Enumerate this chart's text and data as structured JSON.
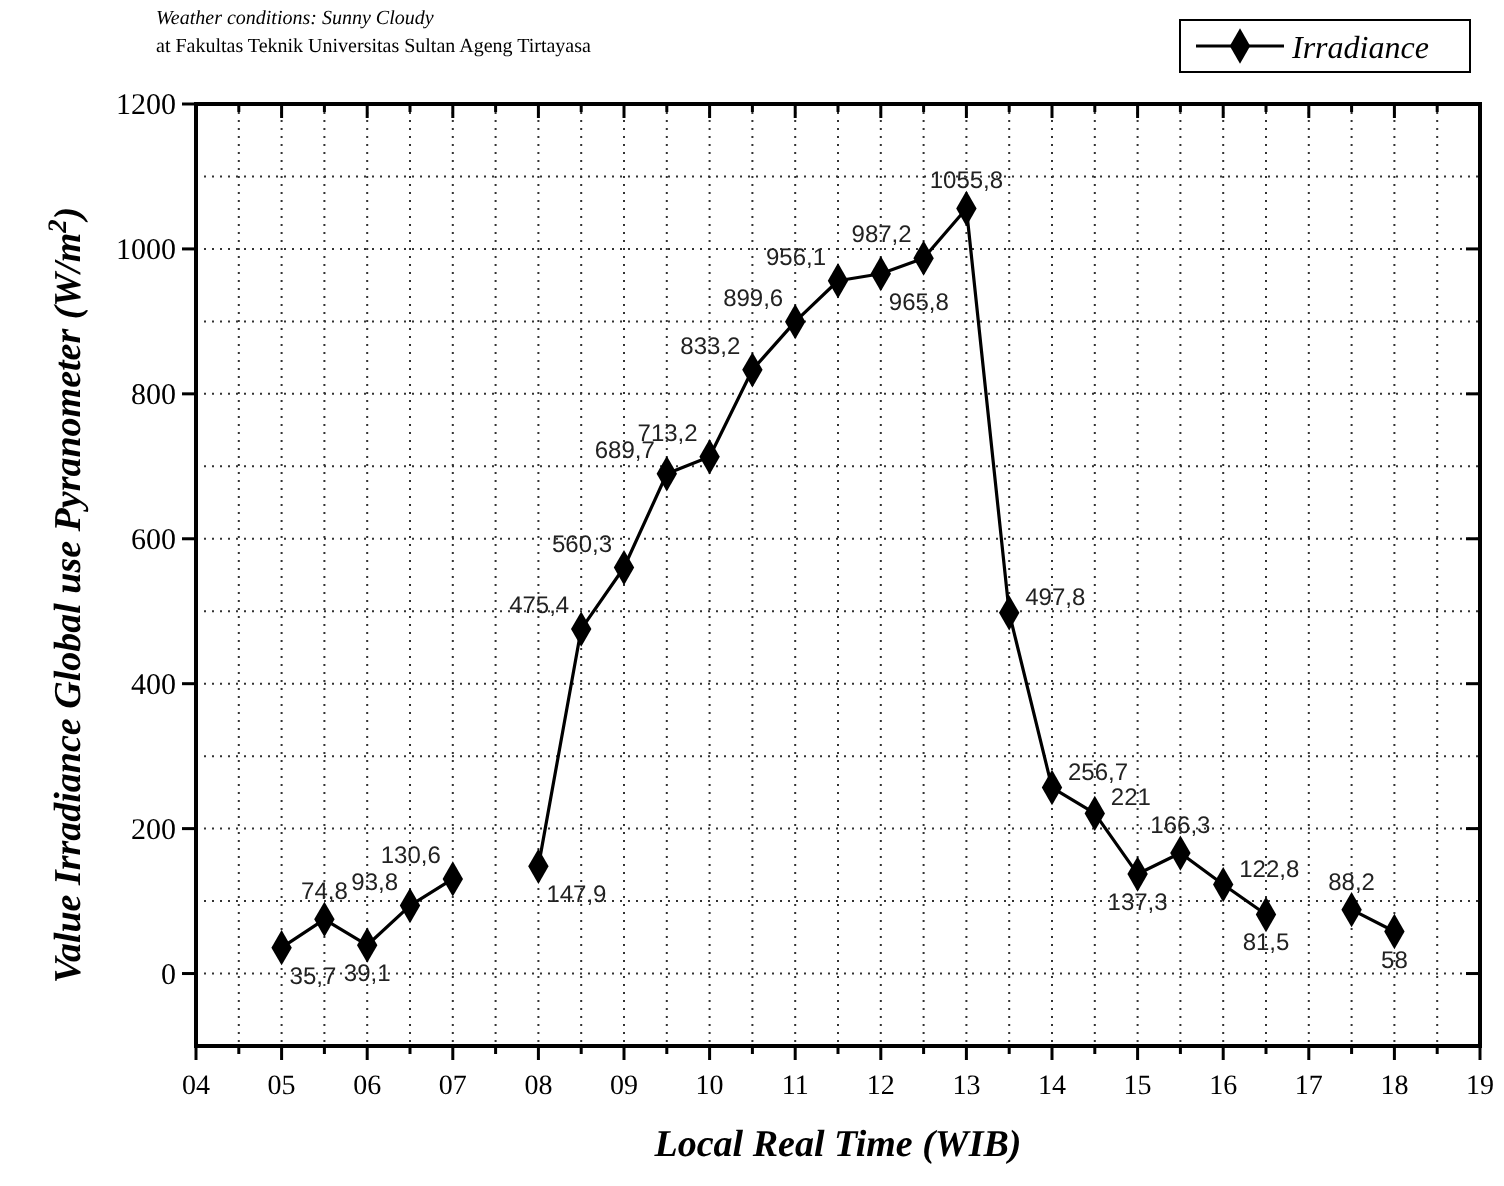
{
  "chart_data": {
    "type": "line",
    "xlabel": "Local Real Time (WIB)",
    "ylabel": "Value Irradiance Global use Pyranometer (W/m$^{2}$)",
    "annotations": [
      "Weather conditions: Sunny Cloudy",
      "at Fakultas Teknik Universitas Sultan Ageng Tirtayasa"
    ],
    "x": [
      5,
      5.5,
      6,
      6.5,
      7,
      7.5,
      8,
      8.5,
      9,
      9.5,
      10,
      10.5,
      11,
      11.5,
      12,
      12.5,
      13,
      13.5,
      14,
      14.5,
      15,
      15.5,
      16,
      16.5,
      17,
      17.5,
      18
    ],
    "series": [
      {
        "name": "Irradiance",
        "color": "#000000",
        "values": [
          35.7,
          74.8,
          39.1,
          93.8,
          130.6,
          null,
          147.9,
          475.4,
          560.3,
          689.7,
          713.2,
          833.2,
          899.6,
          956.1,
          965.8,
          987.2,
          1055.8,
          497.8,
          256.7,
          221,
          137.3,
          166.3,
          122.8,
          81.5,
          null,
          88.2,
          58
        ],
        "value_labels": [
          "35,7",
          "74,8",
          "39,1",
          "93,8",
          "130,6",
          null,
          "147,9",
          "475,4",
          "560,3",
          "689,7",
          "713,2",
          "833,2",
          "899,6",
          "956,1",
          "965,8",
          "987,2",
          "1055,8",
          "497,8",
          "256,7",
          "221",
          "137,3",
          "166,3",
          "122,8",
          "81,5",
          null,
          "88,2",
          "58"
        ]
      }
    ],
    "xlim": [
      4,
      19
    ],
    "xticks": [
      {
        "value": 4,
        "label": "04"
      },
      {
        "value": 5,
        "label": "05"
      },
      {
        "value": 6,
        "label": "06"
      },
      {
        "value": 7,
        "label": "07"
      },
      {
        "value": 8,
        "label": "08"
      },
      {
        "value": 9,
        "label": "09"
      },
      10,
      11,
      12,
      13,
      14,
      15,
      16,
      17,
      18,
      19
    ],
    "ylim": [
      -100,
      1200
    ],
    "yticks": [
      0,
      200,
      400,
      600,
      800,
      1000,
      1200
    ],
    "grid": true,
    "legend": "top right",
    "marker": "diamond",
    "line_style": "solid"
  }
}
